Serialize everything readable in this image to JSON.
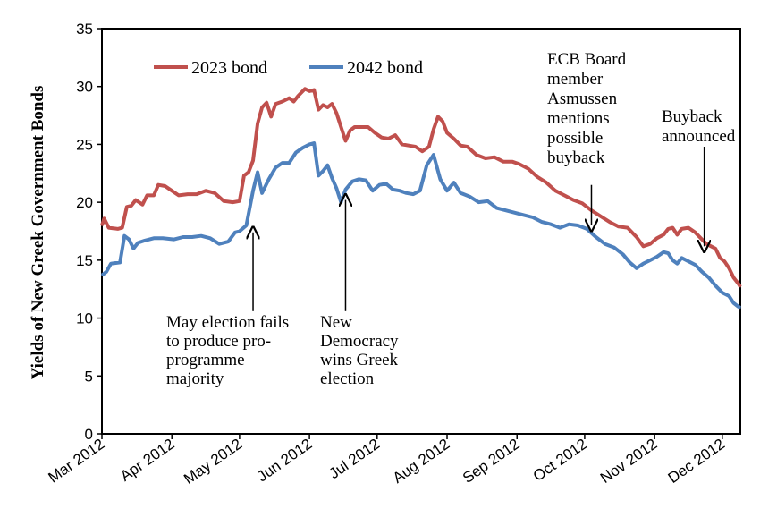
{
  "chart_data": {
    "type": "line",
    "ylabel": "Yields of New Greek Government Bonds",
    "xlabel": "",
    "ylim": [
      0,
      35
    ],
    "yticks": [
      0,
      5,
      10,
      15,
      20,
      25,
      30,
      35
    ],
    "xlim": [
      "2012-03-01",
      "2012-12-01"
    ],
    "xticks": [
      "Mar 2012",
      "Apr 2012",
      "May 2012",
      "Jun 2012",
      "Jul 2012",
      "Aug 2012",
      "Sep 2012",
      "Oct 2012",
      "Nov 2012",
      "Dec 2012"
    ],
    "xtick_dates": [
      "2012-03-01",
      "2012-04-01",
      "2012-05-01",
      "2012-06-01",
      "2012-07-01",
      "2012-08-01",
      "2012-09-01",
      "2012-10-01",
      "2012-11-01",
      "2012-12-01"
    ],
    "grid": false,
    "legend_position": "top-left",
    "series": [
      {
        "name": "2023 bond",
        "color": "#c0504d",
        "points": [
          [
            "2012-03-01",
            18.0
          ],
          [
            "2012-03-02",
            18.6
          ],
          [
            "2012-03-04",
            17.8
          ],
          [
            "2012-03-08",
            17.7
          ],
          [
            "2012-03-10",
            17.8
          ],
          [
            "2012-03-12",
            19.6
          ],
          [
            "2012-03-14",
            19.7
          ],
          [
            "2012-03-16",
            20.2
          ],
          [
            "2012-03-19",
            19.8
          ],
          [
            "2012-03-21",
            20.6
          ],
          [
            "2012-03-24",
            20.6
          ],
          [
            "2012-03-26",
            21.5
          ],
          [
            "2012-03-29",
            21.4
          ],
          [
            "2012-04-01",
            21.0
          ],
          [
            "2012-04-04",
            20.6
          ],
          [
            "2012-04-08",
            20.7
          ],
          [
            "2012-04-12",
            20.7
          ],
          [
            "2012-04-16",
            21.0
          ],
          [
            "2012-04-20",
            20.8
          ],
          [
            "2012-04-24",
            20.1
          ],
          [
            "2012-04-28",
            20.0
          ],
          [
            "2012-05-01",
            20.1
          ],
          [
            "2012-05-03",
            22.3
          ],
          [
            "2012-05-05",
            22.6
          ],
          [
            "2012-05-07",
            23.6
          ],
          [
            "2012-05-09",
            26.8
          ],
          [
            "2012-05-11",
            28.2
          ],
          [
            "2012-05-13",
            28.6
          ],
          [
            "2012-05-15",
            27.4
          ],
          [
            "2012-05-17",
            28.5
          ],
          [
            "2012-05-20",
            28.7
          ],
          [
            "2012-05-23",
            29.0
          ],
          [
            "2012-05-25",
            28.7
          ],
          [
            "2012-05-27",
            29.2
          ],
          [
            "2012-05-30",
            29.8
          ],
          [
            "2012-06-01",
            29.6
          ],
          [
            "2012-06-03",
            29.7
          ],
          [
            "2012-06-05",
            28.0
          ],
          [
            "2012-06-07",
            28.4
          ],
          [
            "2012-06-09",
            28.2
          ],
          [
            "2012-06-11",
            28.5
          ],
          [
            "2012-06-13",
            27.7
          ],
          [
            "2012-06-15",
            26.5
          ],
          [
            "2012-06-17",
            25.3
          ],
          [
            "2012-06-19",
            26.2
          ],
          [
            "2012-06-21",
            26.5
          ],
          [
            "2012-06-24",
            26.5
          ],
          [
            "2012-06-27",
            26.5
          ],
          [
            "2012-06-30",
            26.0
          ],
          [
            "2012-07-03",
            25.6
          ],
          [
            "2012-07-06",
            25.5
          ],
          [
            "2012-07-09",
            25.8
          ],
          [
            "2012-07-12",
            25.0
          ],
          [
            "2012-07-15",
            24.9
          ],
          [
            "2012-07-18",
            24.8
          ],
          [
            "2012-07-21",
            24.4
          ],
          [
            "2012-07-24",
            24.8
          ],
          [
            "2012-07-26",
            26.3
          ],
          [
            "2012-07-28",
            27.4
          ],
          [
            "2012-07-30",
            27.0
          ],
          [
            "2012-08-01",
            26.0
          ],
          [
            "2012-08-04",
            25.5
          ],
          [
            "2012-08-07",
            24.9
          ],
          [
            "2012-08-10",
            24.8
          ],
          [
            "2012-08-14",
            24.1
          ],
          [
            "2012-08-18",
            23.8
          ],
          [
            "2012-08-22",
            23.9
          ],
          [
            "2012-08-26",
            23.5
          ],
          [
            "2012-08-30",
            23.5
          ],
          [
            "2012-09-02",
            23.3
          ],
          [
            "2012-09-06",
            22.9
          ],
          [
            "2012-09-10",
            22.2
          ],
          [
            "2012-09-14",
            21.7
          ],
          [
            "2012-09-18",
            21.0
          ],
          [
            "2012-09-22",
            20.6
          ],
          [
            "2012-09-26",
            20.2
          ],
          [
            "2012-09-30",
            19.9
          ],
          [
            "2012-10-04",
            19.3
          ],
          [
            "2012-10-08",
            18.8
          ],
          [
            "2012-10-12",
            18.3
          ],
          [
            "2012-10-16",
            17.9
          ],
          [
            "2012-10-20",
            17.8
          ],
          [
            "2012-10-24",
            17.0
          ],
          [
            "2012-10-27",
            16.2
          ],
          [
            "2012-10-30",
            16.4
          ],
          [
            "2012-11-02",
            16.9
          ],
          [
            "2012-11-05",
            17.2
          ],
          [
            "2012-11-07",
            17.7
          ],
          [
            "2012-11-09",
            17.8
          ],
          [
            "2012-11-11",
            17.2
          ],
          [
            "2012-11-13",
            17.7
          ],
          [
            "2012-11-16",
            17.8
          ],
          [
            "2012-11-19",
            17.4
          ],
          [
            "2012-11-22",
            16.8
          ],
          [
            "2012-11-24",
            16.4
          ],
          [
            "2012-11-26",
            16.2
          ],
          [
            "2012-11-28",
            16.0
          ],
          [
            "2012-11-30",
            15.2
          ],
          [
            "2012-12-02",
            14.9
          ],
          [
            "2012-12-04",
            14.3
          ],
          [
            "2012-12-06",
            13.5
          ],
          [
            "2012-12-08",
            13.0
          ],
          [
            "2012-12-09",
            12.7
          ]
        ]
      },
      {
        "name": "2042 bond",
        "color": "#4f81bd",
        "points": [
          [
            "2012-03-01",
            13.7
          ],
          [
            "2012-03-03",
            14.0
          ],
          [
            "2012-03-05",
            14.7
          ],
          [
            "2012-03-09",
            14.8
          ],
          [
            "2012-03-11",
            17.1
          ],
          [
            "2012-03-13",
            16.8
          ],
          [
            "2012-03-15",
            16.0
          ],
          [
            "2012-03-17",
            16.5
          ],
          [
            "2012-03-20",
            16.7
          ],
          [
            "2012-03-24",
            16.9
          ],
          [
            "2012-03-28",
            16.9
          ],
          [
            "2012-04-02",
            16.8
          ],
          [
            "2012-04-06",
            17.0
          ],
          [
            "2012-04-10",
            17.0
          ],
          [
            "2012-04-14",
            17.1
          ],
          [
            "2012-04-18",
            16.9
          ],
          [
            "2012-04-22",
            16.4
          ],
          [
            "2012-04-26",
            16.6
          ],
          [
            "2012-04-29",
            17.4
          ],
          [
            "2012-05-01",
            17.5
          ],
          [
            "2012-05-04",
            18.0
          ],
          [
            "2012-05-07",
            21.0
          ],
          [
            "2012-05-09",
            22.6
          ],
          [
            "2012-05-11",
            20.8
          ],
          [
            "2012-05-14",
            22.0
          ],
          [
            "2012-05-17",
            23.0
          ],
          [
            "2012-05-20",
            23.4
          ],
          [
            "2012-05-23",
            23.4
          ],
          [
            "2012-05-26",
            24.3
          ],
          [
            "2012-05-29",
            24.7
          ],
          [
            "2012-06-01",
            25.0
          ],
          [
            "2012-06-03",
            25.1
          ],
          [
            "2012-06-05",
            22.3
          ],
          [
            "2012-06-07",
            22.7
          ],
          [
            "2012-06-09",
            23.2
          ],
          [
            "2012-06-11",
            22.1
          ],
          [
            "2012-06-13",
            21.2
          ],
          [
            "2012-06-15",
            20.0
          ],
          [
            "2012-06-17",
            21.1
          ],
          [
            "2012-06-20",
            21.8
          ],
          [
            "2012-06-23",
            22.0
          ],
          [
            "2012-06-26",
            21.9
          ],
          [
            "2012-06-29",
            21.0
          ],
          [
            "2012-07-02",
            21.5
          ],
          [
            "2012-07-05",
            21.6
          ],
          [
            "2012-07-08",
            21.1
          ],
          [
            "2012-07-11",
            21.0
          ],
          [
            "2012-07-14",
            20.8
          ],
          [
            "2012-07-17",
            20.7
          ],
          [
            "2012-07-20",
            21.0
          ],
          [
            "2012-07-23",
            23.2
          ],
          [
            "2012-07-26",
            24.1
          ],
          [
            "2012-07-29",
            22.0
          ],
          [
            "2012-08-01",
            21.0
          ],
          [
            "2012-08-04",
            21.7
          ],
          [
            "2012-08-07",
            20.8
          ],
          [
            "2012-08-11",
            20.5
          ],
          [
            "2012-08-15",
            20.0
          ],
          [
            "2012-08-19",
            20.1
          ],
          [
            "2012-08-23",
            19.5
          ],
          [
            "2012-08-27",
            19.3
          ],
          [
            "2012-08-31",
            19.1
          ],
          [
            "2012-09-04",
            18.9
          ],
          [
            "2012-09-08",
            18.7
          ],
          [
            "2012-09-12",
            18.3
          ],
          [
            "2012-09-16",
            18.1
          ],
          [
            "2012-09-20",
            17.8
          ],
          [
            "2012-09-24",
            18.1
          ],
          [
            "2012-09-28",
            18.0
          ],
          [
            "2012-10-02",
            17.7
          ],
          [
            "2012-10-06",
            17.0
          ],
          [
            "2012-10-10",
            16.4
          ],
          [
            "2012-10-14",
            16.1
          ],
          [
            "2012-10-18",
            15.5
          ],
          [
            "2012-10-21",
            14.8
          ],
          [
            "2012-10-24",
            14.3
          ],
          [
            "2012-10-27",
            14.7
          ],
          [
            "2012-10-30",
            15.0
          ],
          [
            "2012-11-02",
            15.3
          ],
          [
            "2012-11-05",
            15.7
          ],
          [
            "2012-11-07",
            15.6
          ],
          [
            "2012-11-09",
            15.0
          ],
          [
            "2012-11-11",
            14.7
          ],
          [
            "2012-11-13",
            15.2
          ],
          [
            "2012-11-16",
            14.9
          ],
          [
            "2012-11-19",
            14.6
          ],
          [
            "2012-11-22",
            14.0
          ],
          [
            "2012-11-25",
            13.5
          ],
          [
            "2012-11-28",
            12.8
          ],
          [
            "2012-12-01",
            12.2
          ],
          [
            "2012-12-04",
            11.9
          ],
          [
            "2012-12-06",
            11.3
          ],
          [
            "2012-12-08",
            11.0
          ],
          [
            "2012-12-09",
            10.9
          ]
        ]
      }
    ],
    "annotations": [
      {
        "lines": [
          "May election fails",
          "to produce pro-",
          "programme",
          "majority"
        ],
        "arrow_date": "2012-05-07",
        "arrow_from": 10.6,
        "arrow_to": 17.4
      },
      {
        "lines": [
          "New",
          "Democracy",
          "wins Greek",
          "election"
        ],
        "arrow_date": "2012-06-17",
        "arrow_from": 10.6,
        "arrow_to": 20.2
      },
      {
        "lines": [
          "ECB Board",
          "member",
          "Asmussen",
          "mentions",
          "possible",
          "buyback"
        ],
        "arrow_date": "2012-10-04",
        "arrow_from": 21.5,
        "arrow_to": 18.0
      },
      {
        "lines": [
          "Buyback",
          "announced"
        ],
        "arrow_date": "2012-11-23",
        "arrow_from": 24.8,
        "arrow_to": 16.2
      }
    ]
  }
}
